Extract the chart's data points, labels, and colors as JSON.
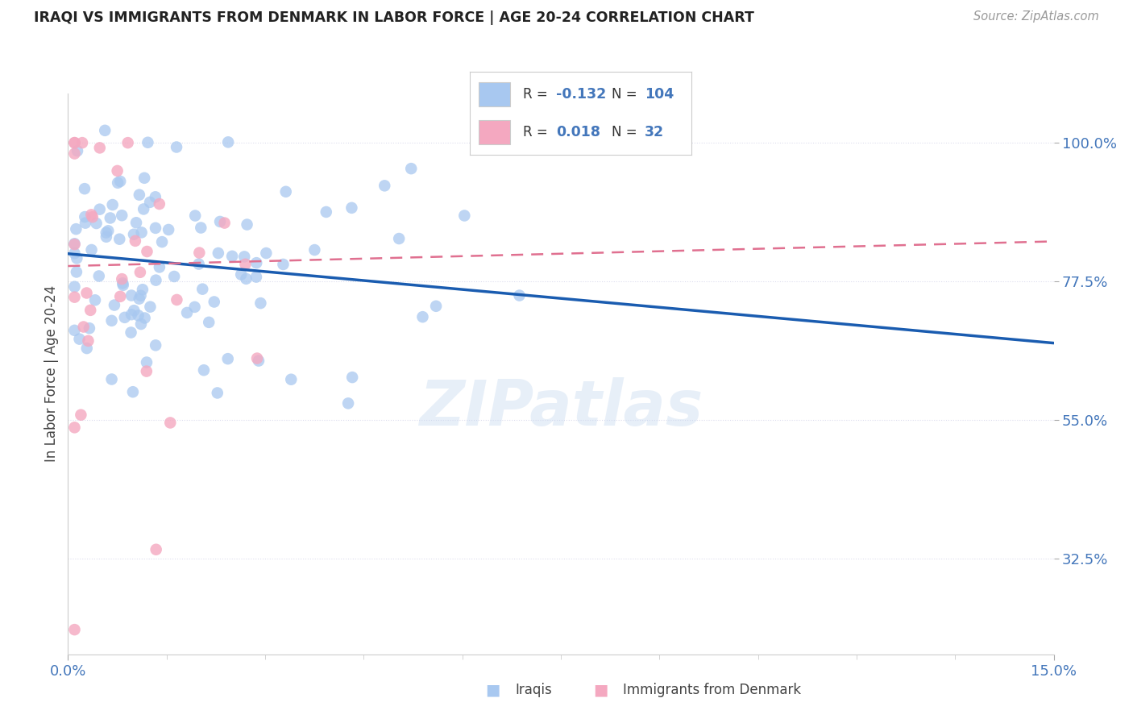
{
  "title": "IRAQI VS IMMIGRANTS FROM DENMARK IN LABOR FORCE | AGE 20-24 CORRELATION CHART",
  "source": "Source: ZipAtlas.com",
  "ylabel": "In Labor Force | Age 20-24",
  "xlim": [
    0.0,
    0.15
  ],
  "ylim": [
    0.17,
    1.08
  ],
  "ytick_labels": [
    "32.5%",
    "55.0%",
    "77.5%",
    "100.0%"
  ],
  "ytick_values": [
    0.325,
    0.55,
    0.775,
    1.0
  ],
  "r_iraqis": -0.132,
  "n_iraqis": 104,
  "r_denmark": 0.018,
  "n_denmark": 32,
  "iraqis_color": "#a8c8f0",
  "denmark_color": "#f4a8c0",
  "iraqis_line_color": "#1a5cb0",
  "denmark_line_color": "#e07090",
  "title_color": "#222222",
  "axis_color": "#4477bb",
  "background_color": "#ffffff",
  "watermark": "ZIPatlas",
  "legend_color_iraqis": "#a8c8f0",
  "legend_color_denmark": "#f4a8c0",
  "legend_text_color": "#4477bb",
  "iraqis_line_y0": 0.82,
  "iraqis_line_y1": 0.675,
  "denmark_line_y0": 0.8,
  "denmark_line_y1": 0.84
}
